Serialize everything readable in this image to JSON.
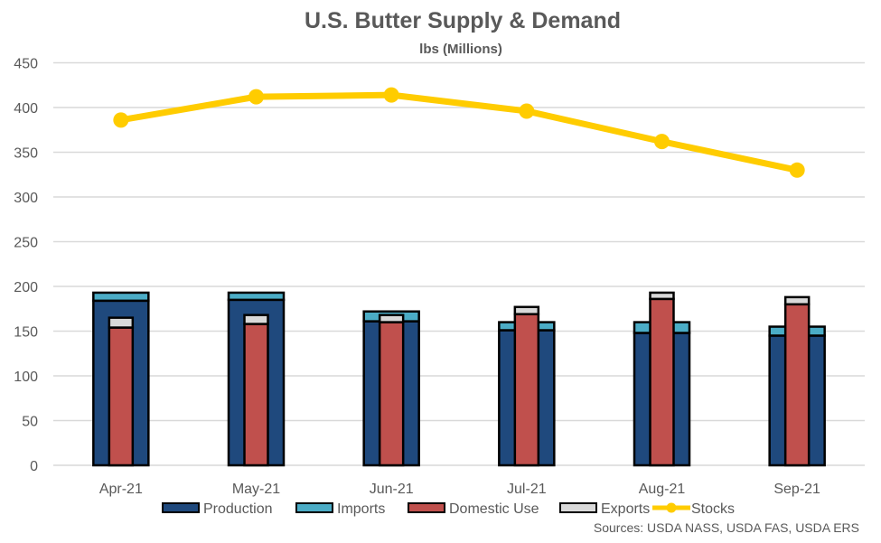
{
  "chart_data": {
    "type": "bar",
    "title": "U.S. Butter Supply & Demand",
    "subtitle": "lbs (Millions)",
    "xlabel": "",
    "ylabel": "",
    "ylim": [
      0,
      450
    ],
    "yticks": [
      0,
      50,
      100,
      150,
      200,
      250,
      300,
      350,
      400,
      450
    ],
    "grid": true,
    "legend_position": "bottom",
    "categories": [
      "Apr-21",
      "May-21",
      "Jun-21",
      "Jul-21",
      "Aug-21",
      "Sep-21"
    ],
    "series": [
      {
        "name": "Production",
        "kind": "stacked-bar-outer",
        "color": "#1F497D",
        "values": [
          184,
          185,
          161,
          151,
          148,
          145
        ]
      },
      {
        "name": "Imports",
        "kind": "stacked-bar-outer",
        "color": "#4BACC6",
        "values": [
          9,
          8,
          11,
          9,
          12,
          10
        ]
      },
      {
        "name": "Domestic Use",
        "kind": "stacked-bar-inner",
        "color": "#C0504D",
        "values": [
          154,
          158,
          160,
          169,
          186,
          180
        ]
      },
      {
        "name": "Exports",
        "kind": "stacked-bar-inner",
        "color": "#D9D9D9",
        "values": [
          11,
          10,
          8,
          8,
          7,
          8
        ]
      },
      {
        "name": "Stocks",
        "kind": "line",
        "color": "#FFCC00",
        "values": [
          386,
          412,
          414,
          396,
          362,
          330
        ]
      }
    ],
    "source": "Sources: USDA NASS, USDA FAS, USDA ERS"
  }
}
